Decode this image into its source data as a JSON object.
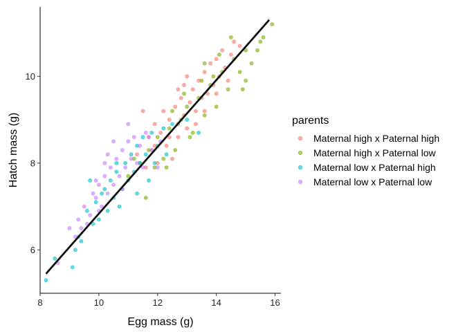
{
  "chart_data": {
    "type": "scatter",
    "title": "",
    "xlabel": "Egg mass (g)",
    "ylabel": "Hatch mass (g)",
    "xlim": [
      8,
      16.2
    ],
    "ylim": [
      5,
      11.6
    ],
    "xticks": [
      8,
      10,
      12,
      14,
      16
    ],
    "yticks": [
      6,
      8,
      10
    ],
    "grid": false,
    "legend": {
      "title": "parents",
      "placement": "right"
    },
    "series": [
      {
        "name": "Maternal high x Paternal high",
        "color": "#F8766D",
        "points": [
          [
            11.9,
            8.9
          ],
          [
            12.1,
            8.7
          ],
          [
            12.3,
            8.4
          ],
          [
            12.4,
            9.0
          ],
          [
            12.6,
            9.3
          ],
          [
            12.7,
            8.6
          ],
          [
            12.8,
            9.5
          ],
          [
            12.9,
            9.1
          ],
          [
            13.0,
            8.8
          ],
          [
            13.1,
            9.4
          ],
          [
            13.2,
            9.7
          ],
          [
            13.3,
            9.2
          ],
          [
            13.4,
            9.9
          ],
          [
            13.5,
            9.5
          ],
          [
            13.6,
            10.1
          ],
          [
            13.7,
            9.6
          ],
          [
            13.8,
            10.3
          ],
          [
            13.9,
            9.8
          ],
          [
            14.0,
            10.4
          ],
          [
            14.1,
            10.0
          ],
          [
            14.2,
            10.6
          ],
          [
            14.3,
            10.2
          ],
          [
            14.5,
            10.5
          ],
          [
            14.6,
            10.8
          ],
          [
            14.8,
            10.7
          ],
          [
            11.5,
            9.2
          ],
          [
            11.6,
            7.9
          ],
          [
            11.8,
            8.3
          ],
          [
            12.0,
            8.0
          ],
          [
            12.2,
            9.2
          ],
          [
            12.5,
            8.1
          ],
          [
            11.3,
            8.2
          ],
          [
            11.7,
            8.6
          ],
          [
            12.9,
            9.8
          ],
          [
            13.3,
            8.9
          ],
          [
            12.7,
            9.7
          ],
          [
            14.4,
            9.9
          ],
          [
            13.0,
            10.0
          ],
          [
            12.4,
            8.6
          ],
          [
            11.9,
            8.4
          ],
          [
            13.6,
            9.2
          ],
          [
            14.0,
            9.6
          ]
        ]
      },
      {
        "name": "Maternal high x Paternal low",
        "color": "#7CAE00",
        "points": [
          [
            11.4,
            8.0
          ],
          [
            11.7,
            8.3
          ],
          [
            12.0,
            8.6
          ],
          [
            12.2,
            8.1
          ],
          [
            12.4,
            8.8
          ],
          [
            12.6,
            8.3
          ],
          [
            12.8,
            9.0
          ],
          [
            13.0,
            9.3
          ],
          [
            13.2,
            8.7
          ],
          [
            13.4,
            9.5
          ],
          [
            13.6,
            9.1
          ],
          [
            13.8,
            9.8
          ],
          [
            14.0,
            9.3
          ],
          [
            14.2,
            10.1
          ],
          [
            14.4,
            9.7
          ],
          [
            14.6,
            10.4
          ],
          [
            14.8,
            10.1
          ],
          [
            15.0,
            10.6
          ],
          [
            15.2,
            10.3
          ],
          [
            15.4,
            10.6
          ],
          [
            15.0,
            9.9
          ],
          [
            15.6,
            10.9
          ],
          [
            15.9,
            11.2
          ],
          [
            14.9,
            9.7
          ],
          [
            14.5,
            10.9
          ],
          [
            13.6,
            10.3
          ],
          [
            11.9,
            7.9
          ],
          [
            11.6,
            7.2
          ],
          [
            11.0,
            7.7
          ],
          [
            12.5,
            9.2
          ],
          [
            13.1,
            8.6
          ],
          [
            14.1,
            10.5
          ],
          [
            12.9,
            9.6
          ],
          [
            12.3,
            7.9
          ],
          [
            13.9,
            10.0
          ],
          [
            11.2,
            8.1
          ],
          [
            12.7,
            8.9
          ],
          [
            13.5,
            9.9
          ],
          [
            15.5,
            10.8
          ]
        ]
      },
      {
        "name": "Maternal low x Paternal high",
        "color": "#00BFC4",
        "points": [
          [
            8.2,
            5.3
          ],
          [
            8.5,
            5.8
          ],
          [
            9.1,
            5.6
          ],
          [
            9.2,
            6.0
          ],
          [
            9.3,
            6.3
          ],
          [
            9.4,
            6.2
          ],
          [
            9.6,
            6.9
          ],
          [
            9.8,
            6.6
          ],
          [
            9.9,
            7.1
          ],
          [
            10.0,
            6.7
          ],
          [
            10.1,
            7.3
          ],
          [
            10.3,
            6.9
          ],
          [
            10.4,
            7.6
          ],
          [
            10.5,
            7.2
          ],
          [
            10.6,
            7.8
          ],
          [
            10.8,
            7.4
          ],
          [
            10.9,
            8.0
          ],
          [
            11.0,
            7.6
          ],
          [
            11.1,
            8.2
          ],
          [
            11.2,
            7.8
          ],
          [
            11.3,
            8.4
          ],
          [
            11.4,
            8.0
          ],
          [
            11.5,
            8.6
          ],
          [
            11.6,
            8.2
          ],
          [
            11.8,
            8.7
          ],
          [
            12.0,
            8.4
          ],
          [
            12.2,
            8.8
          ],
          [
            12.5,
            8.9
          ],
          [
            13.0,
            9.0
          ],
          [
            13.4,
            8.7
          ],
          [
            11.7,
            7.6
          ],
          [
            10.7,
            7.0
          ],
          [
            10.2,
            7.4
          ],
          [
            9.7,
            7.6
          ],
          [
            11.9,
            8.0
          ],
          [
            12.3,
            8.2
          ],
          [
            10.6,
            8.0
          ],
          [
            11.3,
            7.3
          ]
        ]
      },
      {
        "name": "Maternal low x Paternal low",
        "color": "#C77CFF",
        "points": [
          [
            8.6,
            5.7
          ],
          [
            9.0,
            6.5
          ],
          [
            9.3,
            6.7
          ],
          [
            9.5,
            7.0
          ],
          [
            9.7,
            6.8
          ],
          [
            9.8,
            7.3
          ],
          [
            9.9,
            7.2
          ],
          [
            10.0,
            7.5
          ],
          [
            10.1,
            7.0
          ],
          [
            10.2,
            7.7
          ],
          [
            10.3,
            7.3
          ],
          [
            10.4,
            7.9
          ],
          [
            10.5,
            7.5
          ],
          [
            10.6,
            8.1
          ],
          [
            10.7,
            7.7
          ],
          [
            10.8,
            8.3
          ],
          [
            10.9,
            7.9
          ],
          [
            11.0,
            8.5
          ],
          [
            11.1,
            8.1
          ],
          [
            11.2,
            8.6
          ],
          [
            11.3,
            8.0
          ],
          [
            11.4,
            8.4
          ],
          [
            11.5,
            7.9
          ],
          [
            11.6,
            8.7
          ],
          [
            11.8,
            8.3
          ],
          [
            12.0,
            7.9
          ],
          [
            10.0,
            6.9
          ],
          [
            9.6,
            6.6
          ],
          [
            9.2,
            6.3
          ],
          [
            9.4,
            6.5
          ],
          [
            10.3,
            8.2
          ],
          [
            10.5,
            8.5
          ],
          [
            11.7,
            8.6
          ],
          [
            10.8,
            7.4
          ],
          [
            9.9,
            7.6
          ],
          [
            12.1,
            8.5
          ],
          [
            11.0,
            8.9
          ],
          [
            10.2,
            8.0
          ]
        ]
      }
    ],
    "trend_line": {
      "x": [
        8.2,
        15.8
      ],
      "y": [
        5.45,
        11.3
      ],
      "color": "#000000"
    }
  }
}
